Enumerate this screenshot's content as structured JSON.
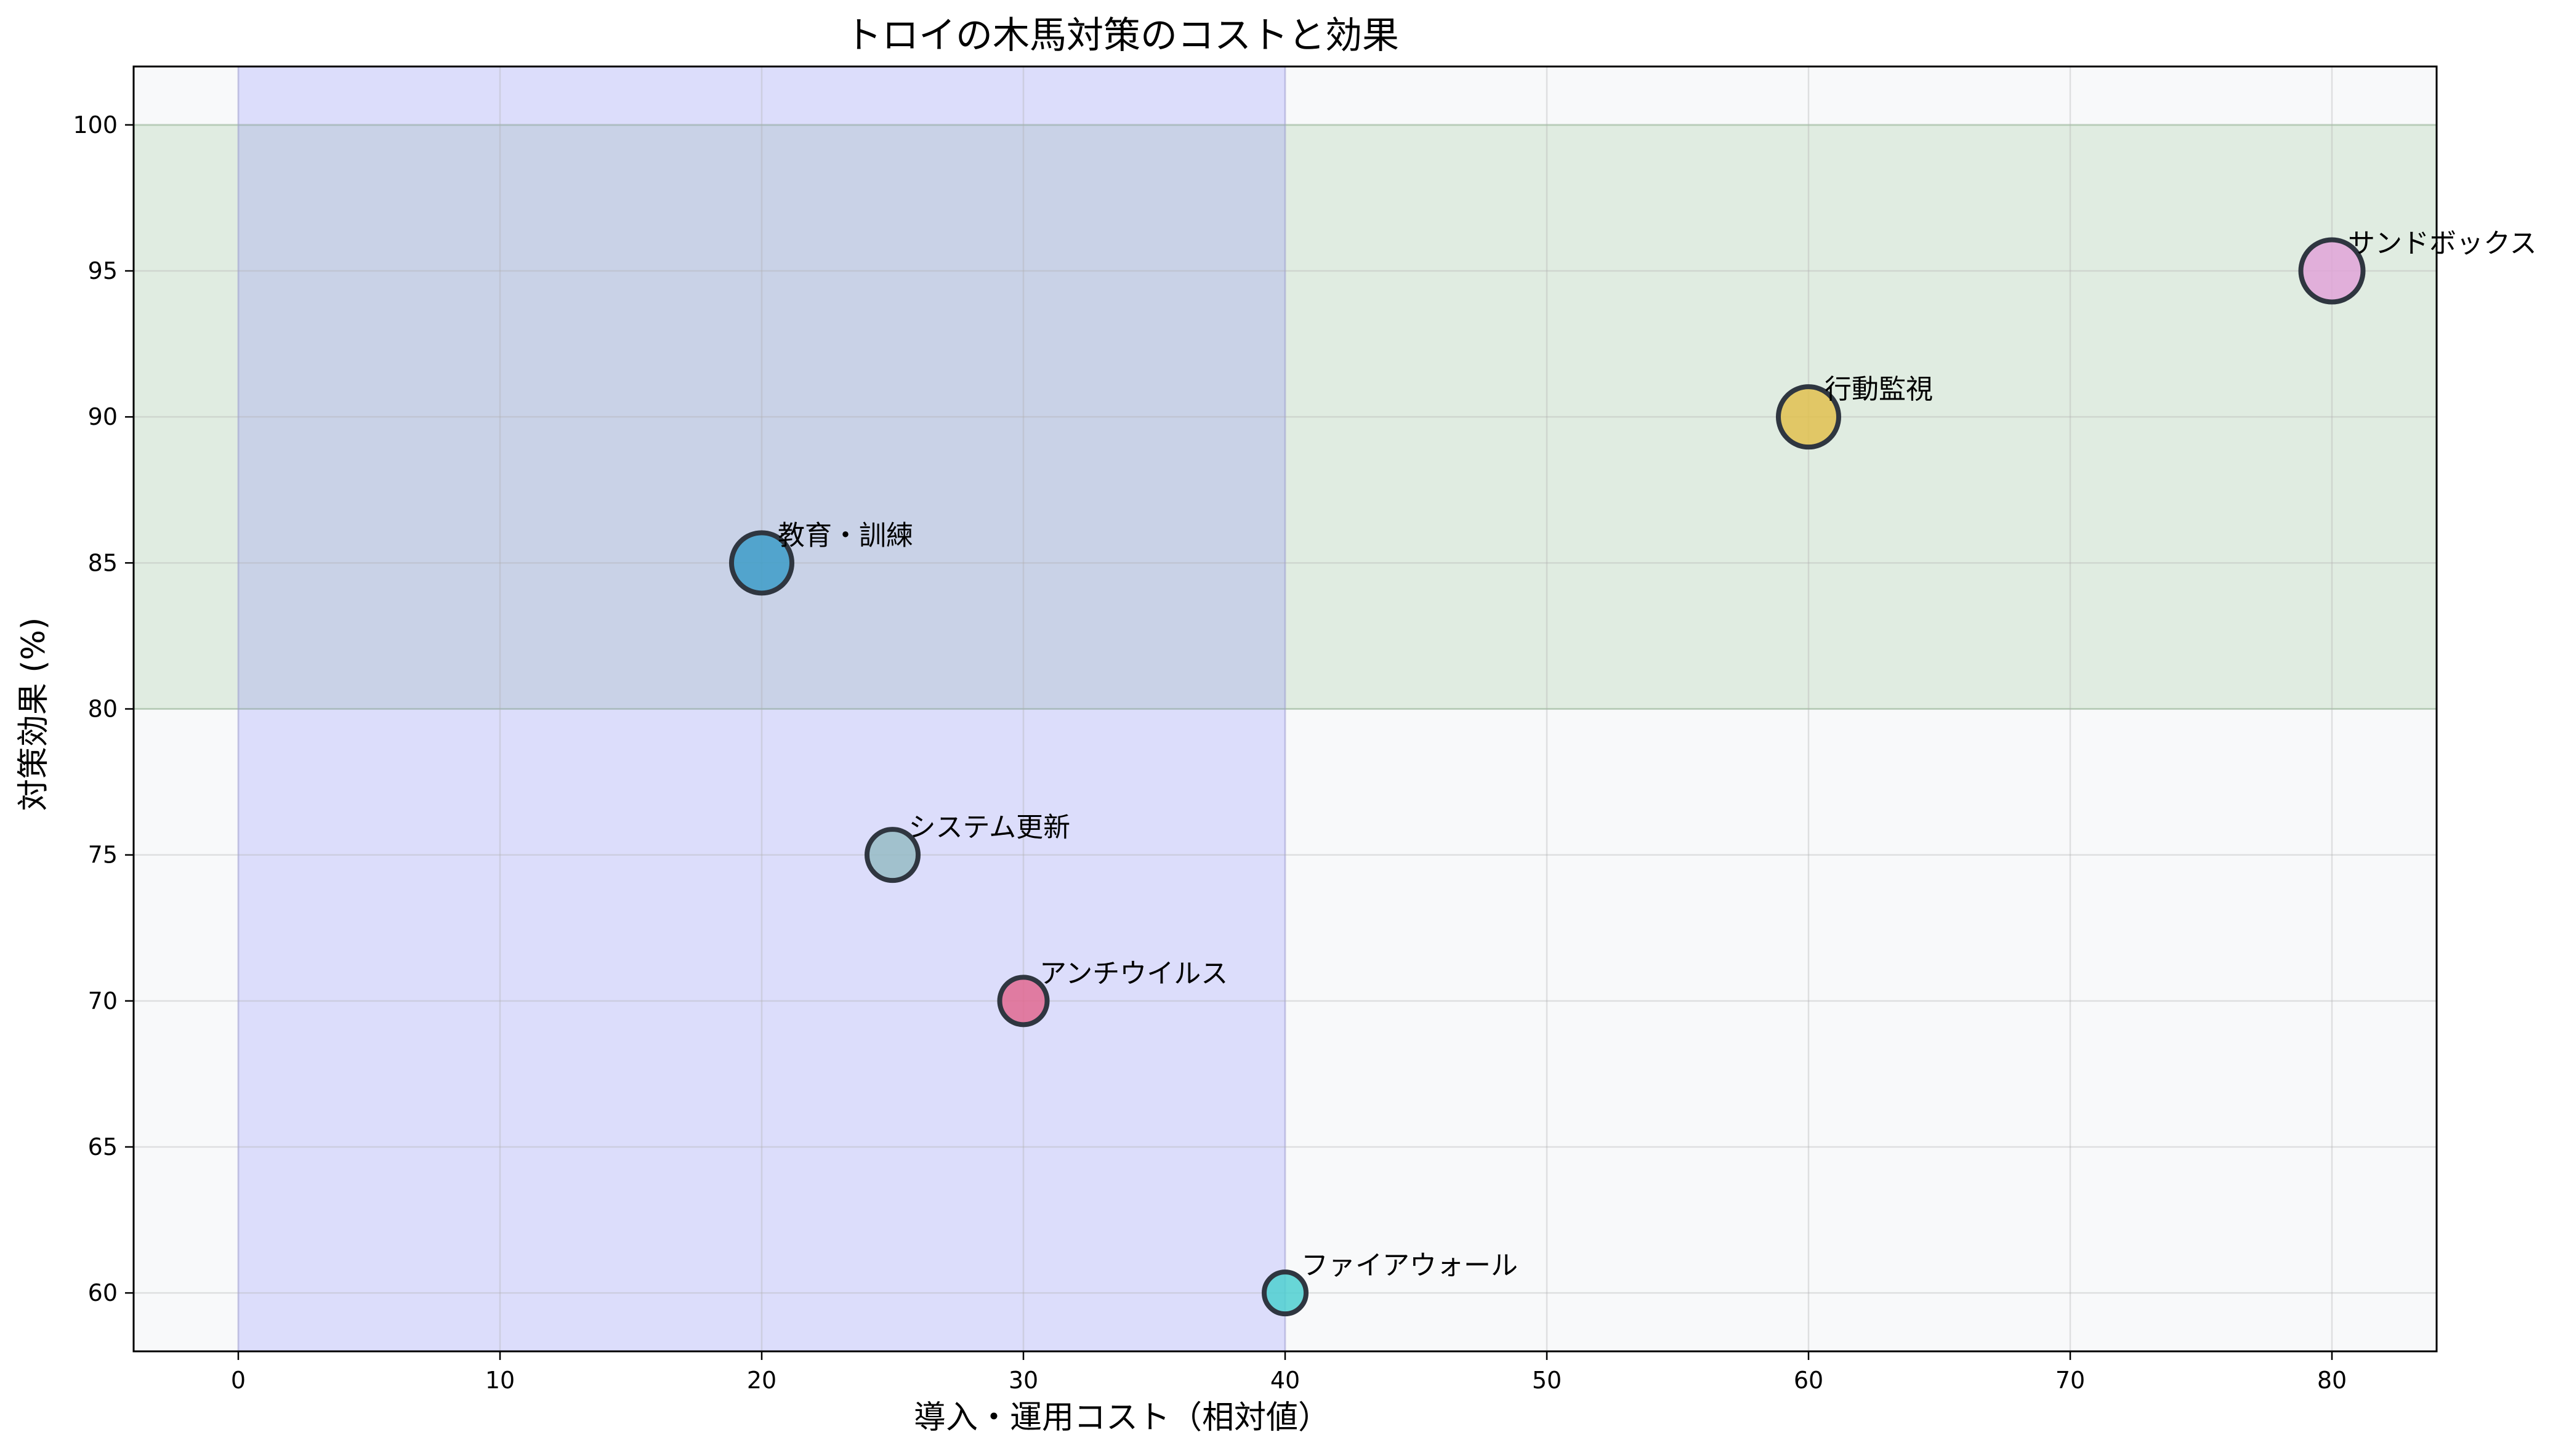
{
  "chart_data": {
    "type": "scatter",
    "title": "トロイの木馬対策のコストと効果",
    "xlabel": "導入・運用コスト（相対値）",
    "ylabel": "対策効果 (%)",
    "xlim": [
      -4,
      84
    ],
    "ylim": [
      58,
      102
    ],
    "xticks": [
      0,
      10,
      20,
      30,
      40,
      50,
      60,
      70,
      80
    ],
    "yticks": [
      60,
      65,
      70,
      75,
      80,
      85,
      90,
      95,
      100
    ],
    "grid": true,
    "background_color": "#f8f9fa",
    "regions": [
      {
        "name": "high-effect-region",
        "x": [
          -4,
          84
        ],
        "y": [
          80,
          100
        ],
        "color": "#3c9a3c",
        "opacity": 0.13
      },
      {
        "name": "low-cost-region",
        "x": [
          0,
          40
        ],
        "y": [
          58,
          102
        ],
        "color": "#7070ff",
        "opacity": 0.2
      }
    ],
    "points": [
      {
        "label": "教育・訓練",
        "x": 20,
        "y": 85,
        "size": 3,
        "color": "#3d9cc8"
      },
      {
        "label": "システム更新",
        "x": 25,
        "y": 75,
        "size": 2.5,
        "color": "#96bcc4"
      },
      {
        "label": "アンチウイルス",
        "x": 30,
        "y": 70,
        "size": 2.3,
        "color": "#e06a90"
      },
      {
        "label": "ファイアウォール",
        "x": 40,
        "y": 60,
        "size": 2,
        "color": "#4fd0d0"
      },
      {
        "label": "行動監視",
        "x": 60,
        "y": 90,
        "size": 3,
        "color": "#e0c150"
      },
      {
        "label": "サンドボックス",
        "x": 80,
        "y": 95,
        "size": 3.1,
        "color": "#e0a4d8"
      }
    ]
  }
}
